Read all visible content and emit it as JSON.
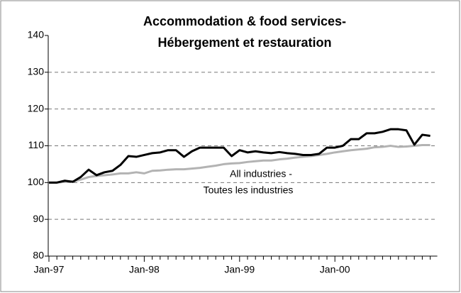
{
  "chart_data": {
    "type": "line",
    "title": [
      "Accommodation & food services-",
      "Hébergement et restauration"
    ],
    "annotation": [
      "All industries -",
      "Toutes les industries"
    ],
    "categories": [
      "Jan-97",
      null,
      null,
      null,
      null,
      null,
      null,
      null,
      null,
      null,
      null,
      null,
      "Jan-98",
      null,
      null,
      null,
      null,
      null,
      null,
      null,
      null,
      null,
      null,
      null,
      "Jan-99",
      null,
      null,
      null,
      null,
      null,
      null,
      null,
      null,
      null,
      null,
      null,
      "Jan-00",
      null,
      null,
      null,
      null,
      null,
      null,
      null,
      null,
      null,
      null,
      null,
      null
    ],
    "series": [
      {
        "color": "#000000",
        "values": [
          100,
          100,
          100.5,
          100.2,
          101.5,
          103.5,
          102,
          102.8,
          103.2,
          104.8,
          107.2,
          107,
          107.5,
          108,
          108.2,
          108.8,
          108.8,
          107,
          108.5,
          109.5,
          109.5,
          109.5,
          109.5,
          107.2,
          108.8,
          108.2,
          108.5,
          108.2,
          108,
          108.3,
          108,
          107.8,
          107.5,
          107.5,
          107.8,
          109.5,
          109.5,
          110,
          111.8,
          111.8,
          113.4,
          113.4,
          113.8,
          114.5,
          114.5,
          114.2,
          110.3,
          113,
          112.7
        ]
      },
      {
        "color": "#b3b3b3",
        "values": [
          100,
          100,
          100.2,
          100.3,
          100.8,
          101.5,
          101.8,
          102,
          102.2,
          102.5,
          102.5,
          102.8,
          102.5,
          103.2,
          103.3,
          103.5,
          103.6,
          103.6,
          103.8,
          104,
          104.3,
          104.6,
          105,
          105.2,
          105.3,
          105.6,
          105.8,
          106,
          106,
          106.3,
          106.5,
          106.8,
          107,
          107.2,
          107.5,
          107.8,
          108.2,
          108.5,
          108.8,
          109,
          109.2,
          109.6,
          109.7,
          110,
          109.7,
          109.8,
          110,
          110.2,
          110.2
        ]
      }
    ],
    "ylim": [
      80,
      140
    ],
    "yticks": [
      80,
      90,
      100,
      110,
      120,
      130,
      140
    ],
    "grid": true
  }
}
